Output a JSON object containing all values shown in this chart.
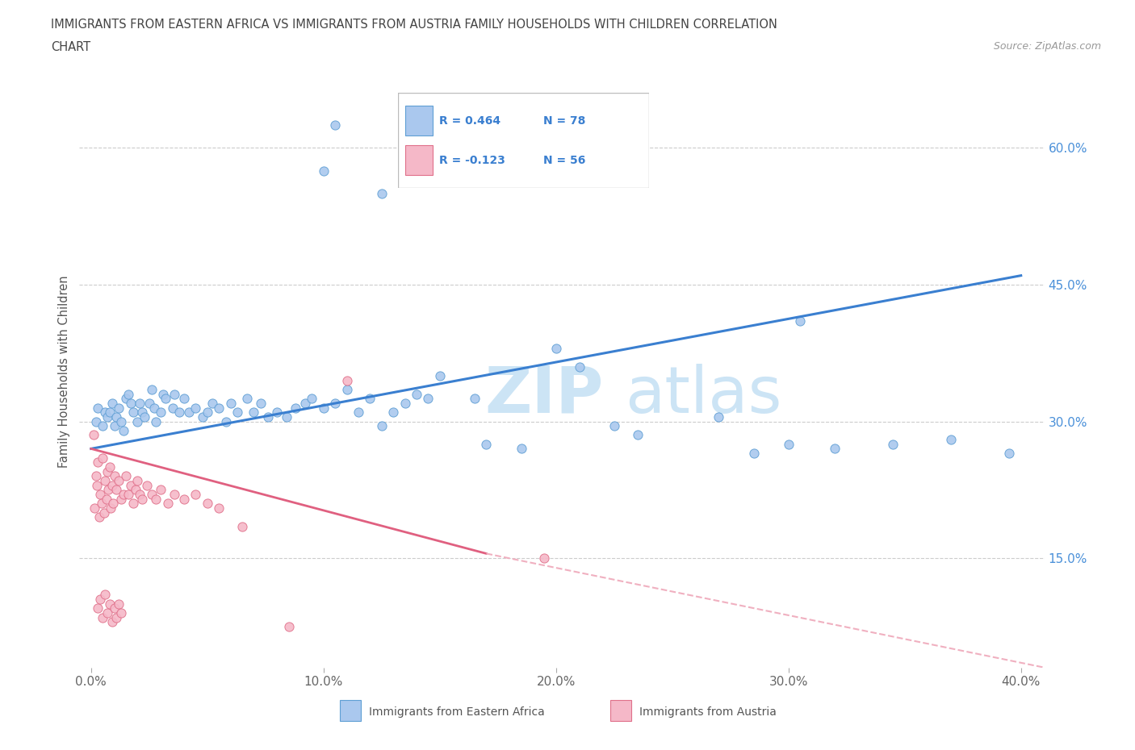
{
  "title_line1": "IMMIGRANTS FROM EASTERN AFRICA VS IMMIGRANTS FROM AUSTRIA FAMILY HOUSEHOLDS WITH CHILDREN CORRELATION",
  "title_line2": "CHART",
  "source": "Source: ZipAtlas.com",
  "ylabel": "Family Households with Children",
  "xlabel_ticks": [
    "0.0%",
    "10.0%",
    "20.0%",
    "30.0%",
    "40.0%"
  ],
  "xtick_vals": [
    0.0,
    10.0,
    20.0,
    30.0,
    40.0
  ],
  "ytick_right_vals": [
    15.0,
    30.0,
    45.0,
    60.0
  ],
  "ytick_right_labels": [
    "15.0%",
    "30.0%",
    "45.0%",
    "60.0%"
  ],
  "ylim": [
    3.0,
    68.0
  ],
  "xlim": [
    -0.5,
    41.0
  ],
  "series1_label": "Immigrants from Eastern Africa",
  "series1_color": "#aac8ee",
  "series1_edge": "#5f9fd4",
  "series1_R": "0.464",
  "series1_N": "78",
  "series2_label": "Immigrants from Austria",
  "series2_color": "#f5b8c8",
  "series2_edge": "#e0708a",
  "series2_R": "-0.123",
  "series2_N": "56",
  "trend1_color": "#3a7fd0",
  "trend2_color": "#e06080",
  "trend2_dash_color": "#f0b0c0",
  "grid_color": "#cccccc",
  "title_color": "#555555",
  "right_tick_color": "#4a90d9",
  "watermark": "ZIPatlas",
  "watermark_color": "#cce4f5",
  "legend_R_color": "#3a7fd0",
  "trend1_x0": 0.0,
  "trend1_y0": 27.0,
  "trend1_x1": 40.0,
  "trend1_y1": 46.0,
  "trend2_solid_x0": 0.0,
  "trend2_solid_y0": 27.0,
  "trend2_solid_x1": 17.0,
  "trend2_solid_y1": 15.5,
  "trend2_dash_x0": 17.0,
  "trend2_dash_y0": 15.5,
  "trend2_dash_x1": 41.0,
  "trend2_dash_y1": 3.0,
  "ea_x": [
    0.2,
    0.3,
    0.5,
    0.6,
    0.7,
    0.8,
    0.9,
    1.0,
    1.1,
    1.2,
    1.3,
    1.4,
    1.5,
    1.6,
    1.7,
    1.8,
    2.0,
    2.1,
    2.2,
    2.3,
    2.5,
    2.6,
    2.7,
    2.8,
    3.0,
    3.1,
    3.2,
    3.5,
    3.6,
    3.8,
    4.0,
    4.2,
    4.5,
    4.8,
    5.0,
    5.2,
    5.5,
    5.8,
    6.0,
    6.3,
    6.7,
    7.0,
    7.3,
    7.6,
    8.0,
    8.4,
    8.8,
    9.2,
    9.5,
    10.0,
    10.5,
    11.0,
    11.5,
    12.0,
    12.5,
    13.0,
    13.5,
    14.0,
    14.5,
    15.0,
    16.5,
    17.0,
    18.5,
    20.0,
    21.0,
    22.5,
    23.5,
    27.0,
    28.5,
    30.0,
    32.0,
    34.5,
    37.0,
    39.5,
    10.0,
    10.5,
    12.5,
    30.5
  ],
  "ea_y": [
    30.0,
    31.5,
    29.5,
    31.0,
    30.5,
    31.0,
    32.0,
    29.5,
    30.5,
    31.5,
    30.0,
    29.0,
    32.5,
    33.0,
    32.0,
    31.0,
    30.0,
    32.0,
    31.0,
    30.5,
    32.0,
    33.5,
    31.5,
    30.0,
    31.0,
    33.0,
    32.5,
    31.5,
    33.0,
    31.0,
    32.5,
    31.0,
    31.5,
    30.5,
    31.0,
    32.0,
    31.5,
    30.0,
    32.0,
    31.0,
    32.5,
    31.0,
    32.0,
    30.5,
    31.0,
    30.5,
    31.5,
    32.0,
    32.5,
    31.5,
    32.0,
    33.5,
    31.0,
    32.5,
    29.5,
    31.0,
    32.0,
    33.0,
    32.5,
    35.0,
    32.5,
    27.5,
    27.0,
    38.0,
    36.0,
    29.5,
    28.5,
    30.5,
    26.5,
    27.5,
    27.0,
    27.5,
    28.0,
    26.5,
    57.5,
    62.5,
    55.0,
    41.0
  ],
  "au_x": [
    0.1,
    0.15,
    0.2,
    0.25,
    0.3,
    0.35,
    0.4,
    0.45,
    0.5,
    0.55,
    0.6,
    0.65,
    0.7,
    0.75,
    0.8,
    0.85,
    0.9,
    0.95,
    1.0,
    1.1,
    1.2,
    1.3,
    1.4,
    1.5,
    1.6,
    1.7,
    1.8,
    1.9,
    2.0,
    2.1,
    2.2,
    2.4,
    2.6,
    2.8,
    3.0,
    3.3,
    3.6,
    4.0,
    4.5,
    5.0,
    5.5,
    6.5,
    8.5,
    11.0,
    19.5,
    0.3,
    0.4,
    0.5,
    0.6,
    0.7,
    0.8,
    0.9,
    1.0,
    1.1,
    1.2,
    1.3
  ],
  "au_y": [
    28.5,
    20.5,
    24.0,
    23.0,
    25.5,
    19.5,
    22.0,
    21.0,
    26.0,
    20.0,
    23.5,
    21.5,
    24.5,
    22.5,
    25.0,
    20.5,
    23.0,
    21.0,
    24.0,
    22.5,
    23.5,
    21.5,
    22.0,
    24.0,
    22.0,
    23.0,
    21.0,
    22.5,
    23.5,
    22.0,
    21.5,
    23.0,
    22.0,
    21.5,
    22.5,
    21.0,
    22.0,
    21.5,
    22.0,
    21.0,
    20.5,
    18.5,
    7.5,
    34.5,
    15.0,
    9.5,
    10.5,
    8.5,
    11.0,
    9.0,
    10.0,
    8.0,
    9.5,
    8.5,
    10.0,
    9.0
  ]
}
